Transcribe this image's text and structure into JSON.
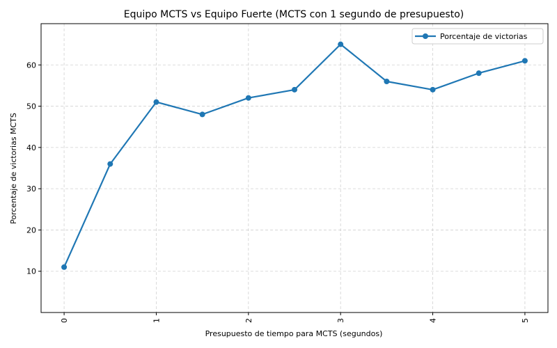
{
  "chart_data": {
    "type": "line",
    "title": "Equipo MCTS vs Equipo Fuerte (MCTS con 1 segundo de presupuesto)",
    "xlabel": "Presupuesto de tiempo para MCTS (segundos)",
    "ylabel": "Porcentaje de victorias MCTS",
    "x": [
      0,
      0.5,
      1,
      1.5,
      2,
      2.5,
      3,
      3.5,
      4,
      4.5,
      5
    ],
    "series": [
      {
        "name": "Porcentaje de victorias",
        "values": [
          11,
          36,
          51,
          48,
          52,
          54,
          65,
          56,
          54,
          58,
          61
        ],
        "color": "#1f77b4"
      }
    ],
    "xlim": [
      -0.25,
      5.25
    ],
    "ylim": [
      0,
      70
    ],
    "xticks": [
      "0",
      "1",
      "2",
      "3",
      "4",
      "5"
    ],
    "yticks": [
      "10",
      "20",
      "30",
      "40",
      "50",
      "60"
    ],
    "grid": true,
    "legend_position": "top-right",
    "marker": "circle",
    "line_style": "solid"
  }
}
